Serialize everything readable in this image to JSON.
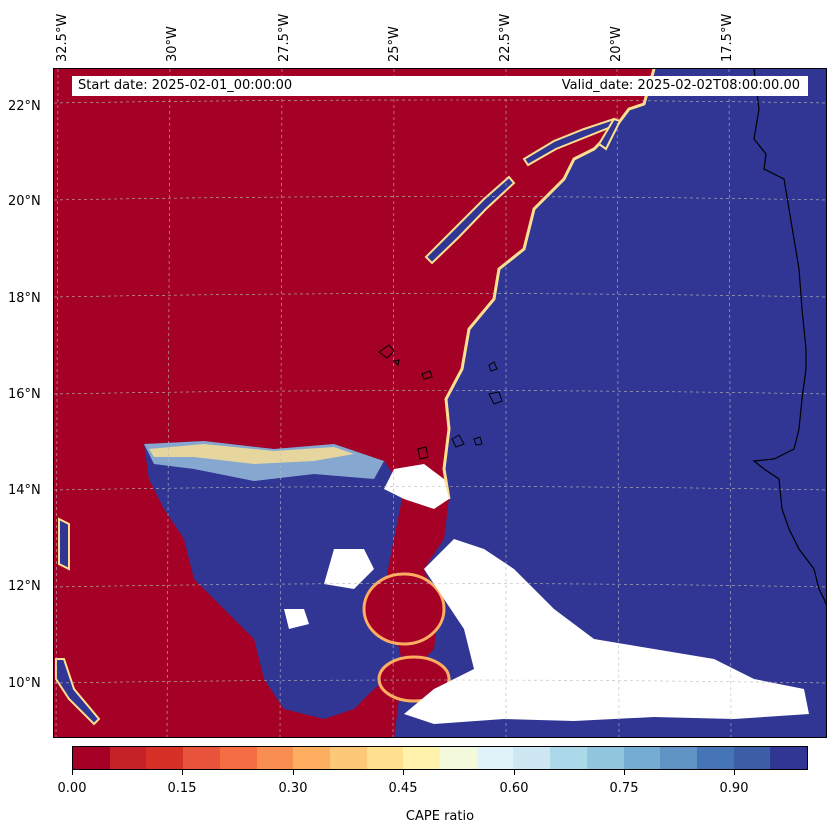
{
  "header": {
    "start_date": "Start date: 2025-02-01_00:00:00",
    "valid_date": "Valid_date: 2025-02-02T08:00:00.00"
  },
  "longitude_labels": [
    "32.5°W",
    "30°W",
    "27.5°W",
    "25°W",
    "22.5°W",
    "20°W",
    "17.5°W"
  ],
  "latitude_labels": [
    "22°N",
    "20°N",
    "18°N",
    "16°N",
    "14°N",
    "12°N",
    "10°N"
  ],
  "colorbar": {
    "label": "CAPE ratio",
    "tick_labels": [
      "0.00",
      "0.15",
      "0.30",
      "0.45",
      "0.60",
      "0.75",
      "0.90"
    ],
    "colors": [
      "#a50026",
      "#c52227",
      "#d73027",
      "#e8543b",
      "#f46d43",
      "#f98e52",
      "#fdae61",
      "#fec879",
      "#fee090",
      "#fff2ab",
      "#f3fadc",
      "#e0f3f8",
      "#cde8f3",
      "#abd9e9",
      "#92c5de",
      "#74add1",
      "#5f93c4",
      "#4575b4",
      "#3c5ea7",
      "#313695"
    ],
    "range": [
      0.0,
      1.0
    ]
  },
  "colors": {
    "high_cape_ratio": "#313695",
    "low_cape_ratio": "#a50026",
    "masked": "#ffffff",
    "coastline": "#000000",
    "gridline": "#bbbbbb"
  }
}
